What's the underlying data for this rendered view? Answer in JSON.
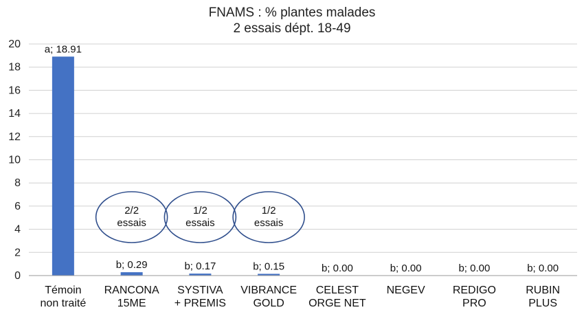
{
  "chart_data": {
    "type": "bar",
    "title": [
      "FNAMS : % plantes malades",
      "2 essais dépt. 18-49"
    ],
    "xlabel": "",
    "ylabel": "",
    "ylim": [
      0,
      20
    ],
    "yticks": [
      "0",
      "2",
      "4",
      "6",
      "8",
      "10",
      "12",
      "14",
      "16",
      "18",
      "20"
    ],
    "grid": true,
    "bar_color": "#4472c4",
    "categories": [
      [
        "Témoin",
        "non traité"
      ],
      [
        "RANCONA",
        "15ME"
      ],
      [
        "SYSTIVA",
        "+ PREMIS"
      ],
      [
        "VIBRANCE",
        "GOLD"
      ],
      [
        "CELEST",
        "ORGE NET"
      ],
      [
        "NEGEV"
      ],
      [
        "REDIGO",
        "PRO"
      ],
      [
        "RUBIN",
        "PLUS"
      ]
    ],
    "values": [
      18.91,
      0.29,
      0.17,
      0.15,
      0.0,
      0.0,
      0.0,
      0.0
    ],
    "data_labels": [
      "a; 18.91",
      "b; 0.29",
      "b; 0.17",
      "b; 0.15",
      "b; 0.00",
      "b; 0.00",
      "b; 0.00",
      "b; 0.00"
    ],
    "annotations": [
      {
        "category_index": 1,
        "text": [
          "2/2",
          "essais"
        ]
      },
      {
        "category_index": 2,
        "text": [
          "1/2",
          "essais"
        ]
      },
      {
        "category_index": 3,
        "text": [
          "1/2",
          "essais"
        ]
      }
    ]
  }
}
